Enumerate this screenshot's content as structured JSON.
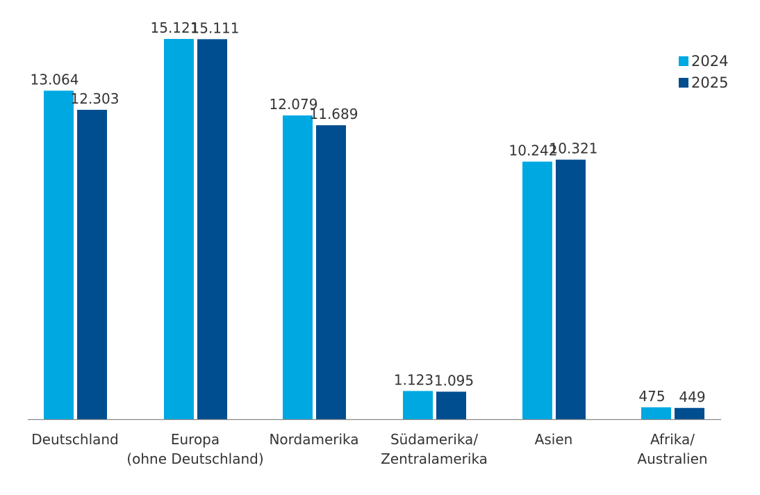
{
  "chart_data": {
    "type": "bar",
    "categories": [
      [
        "Deutschland"
      ],
      [
        "Europa",
        "(ohne Deutschland)"
      ],
      [
        "Nordamerika"
      ],
      [
        "Südamerika/",
        "Zentralamerika"
      ],
      [
        "Asien"
      ],
      [
        "Afrika/",
        "Australien"
      ]
    ],
    "series": [
      {
        "name": "2024",
        "color": "#00a8e2",
        "values": [
          13064,
          15121,
          12079,
          1123,
          10242,
          475
        ],
        "labels": [
          "13.064",
          "15.121",
          "12.079",
          "1.123",
          "10.242",
          "475"
        ]
      },
      {
        "name": "2025",
        "color": "#004d8f",
        "values": [
          12303,
          15111,
          11689,
          1095,
          10321,
          449
        ],
        "labels": [
          "12.303",
          "15.111",
          "11.689",
          "1.095",
          "10.321",
          "449"
        ]
      }
    ],
    "legend": "top-right",
    "grid": false,
    "axis_color": "#888888"
  }
}
